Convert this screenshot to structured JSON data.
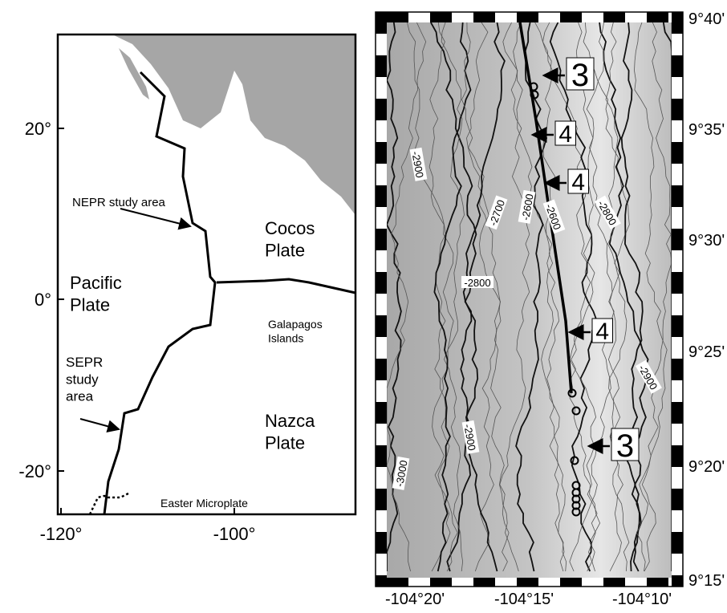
{
  "left_map": {
    "y_ticks": [
      "20°",
      "0°",
      "-20°"
    ],
    "x_ticks": [
      "-120°",
      "-100°"
    ],
    "labels": [
      {
        "lines": [
          "NEPR study area"
        ]
      },
      {
        "lines": [
          "Cocos",
          "Plate"
        ]
      },
      {
        "lines": [
          "Pacific",
          "Plate"
        ]
      },
      {
        "lines": [
          "Galapagos",
          "Islands"
        ]
      },
      {
        "lines": [
          "SEPR",
          "study",
          "area"
        ]
      },
      {
        "lines": [
          "Nazca",
          "Plate"
        ]
      },
      {
        "lines": [
          "Easter Microplate"
        ]
      }
    ]
  },
  "right_map": {
    "y_ticks": [
      "9°40'",
      "9°35'",
      "9°30'",
      "9°25'",
      "9°20'",
      "9°15'"
    ],
    "x_ticks": [
      "-104°20'",
      "-104°15'",
      "-104°10'"
    ],
    "contour_labels": [
      "-2900",
      "-2700",
      "-2600",
      "-2600",
      "-2800",
      "-2800",
      "-2900",
      "-2900",
      "-3000"
    ],
    "markers": [
      "3",
      "4",
      "4",
      "4",
      "3"
    ]
  }
}
